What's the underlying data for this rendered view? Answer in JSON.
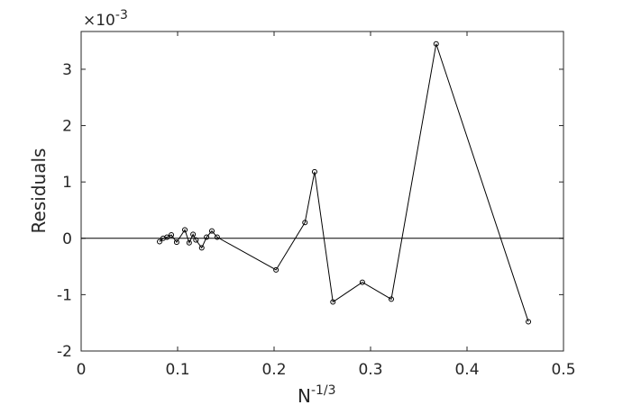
{
  "chart_data": {
    "type": "line",
    "xlabel": {
      "base": "N",
      "exponent": "-1/3"
    },
    "ylabel": "Residuals",
    "y_multiplier": {
      "base": "×10",
      "exponent": "-3"
    },
    "x": [
      0.0813,
      0.085,
      0.089,
      0.0935,
      0.099,
      0.1075,
      0.112,
      0.116,
      0.119,
      0.125,
      0.13,
      0.1355,
      0.141,
      0.202,
      0.232,
      0.242,
      0.261,
      0.2915,
      0.3215,
      0.368,
      0.4636
    ],
    "series": [
      {
        "color": "#000000",
        "values": [
          -0.06,
          0.0,
          0.02,
          0.06,
          -0.07,
          0.15,
          -0.08,
          0.07,
          -0.03,
          -0.17,
          0.02,
          0.13,
          0.02,
          -0.56,
          0.28,
          1.18,
          -1.13,
          -0.78,
          -1.08,
          3.45,
          -1.48
        ]
      }
    ],
    "reference_line": 0,
    "xlim": [
      0,
      0.5
    ],
    "ylim": [
      -2,
      3.67
    ],
    "xticks": [
      0,
      0.1,
      0.2,
      0.3,
      0.4,
      0.5
    ],
    "yticks": [
      -2,
      -1,
      0,
      1,
      2,
      3
    ],
    "grid": false
  }
}
